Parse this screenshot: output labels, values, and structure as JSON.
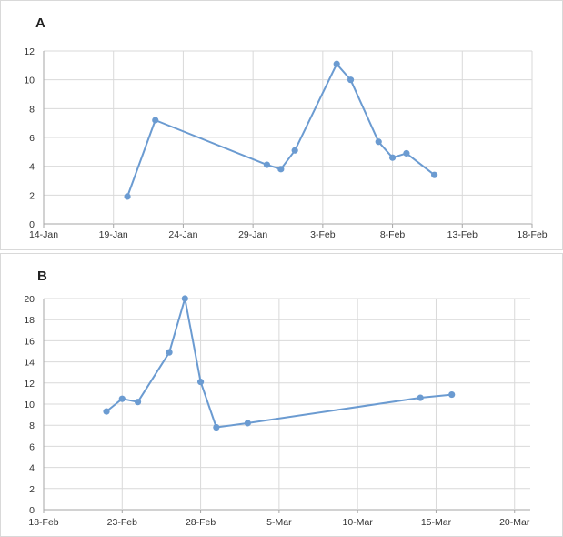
{
  "colors": {
    "series": "#6b9bd1",
    "grid": "#d9d9d9",
    "axis": "#a6a6a6",
    "text": "#333333"
  },
  "chart_data": [
    {
      "type": "line",
      "panel_label": "A",
      "ylim": [
        0,
        12
      ],
      "yticks": [
        0,
        2,
        4,
        6,
        8,
        10,
        12
      ],
      "x_is_date": true,
      "xlim": [
        "2000-01-14",
        "2000-02-18"
      ],
      "xtick_labels": [
        "14-Jan",
        "19-Jan",
        "24-Jan",
        "29-Jan",
        "3-Feb",
        "8-Feb",
        "13-Feb",
        "18-Feb"
      ],
      "grid": true,
      "x": [
        "2000-01-20",
        "2000-01-22",
        "2000-01-30",
        "2000-01-31",
        "2000-02-01",
        "2000-02-04",
        "2000-02-05",
        "2000-02-07",
        "2000-02-08",
        "2000-02-09",
        "2000-02-11"
      ],
      "y": [
        1.9,
        7.2,
        4.1,
        3.8,
        5.1,
        11.1,
        10.0,
        5.7,
        4.6,
        4.9,
        3.4
      ]
    },
    {
      "type": "line",
      "panel_label": "B",
      "ylim": [
        0,
        20
      ],
      "yticks": [
        0,
        2,
        4,
        6,
        8,
        10,
        12,
        14,
        16,
        18,
        20
      ],
      "x_is_date": true,
      "xlim": [
        "2000-02-18",
        "2000-03-20"
      ],
      "xtick_labels": [
        "18-Feb",
        "23-Feb",
        "28-Feb",
        "5-Mar",
        "10-Mar",
        "15-Mar",
        "20-Mar"
      ],
      "grid": true,
      "x": [
        "2000-02-22",
        "2000-02-23",
        "2000-02-24",
        "2000-02-26",
        "2000-02-27",
        "2000-02-28",
        "2000-02-29",
        "2000-03-02",
        "2000-03-13",
        "2000-03-15"
      ],
      "y": [
        9.3,
        10.5,
        10.2,
        14.9,
        20.0,
        12.1,
        7.8,
        8.2,
        10.6,
        10.9
      ]
    }
  ]
}
